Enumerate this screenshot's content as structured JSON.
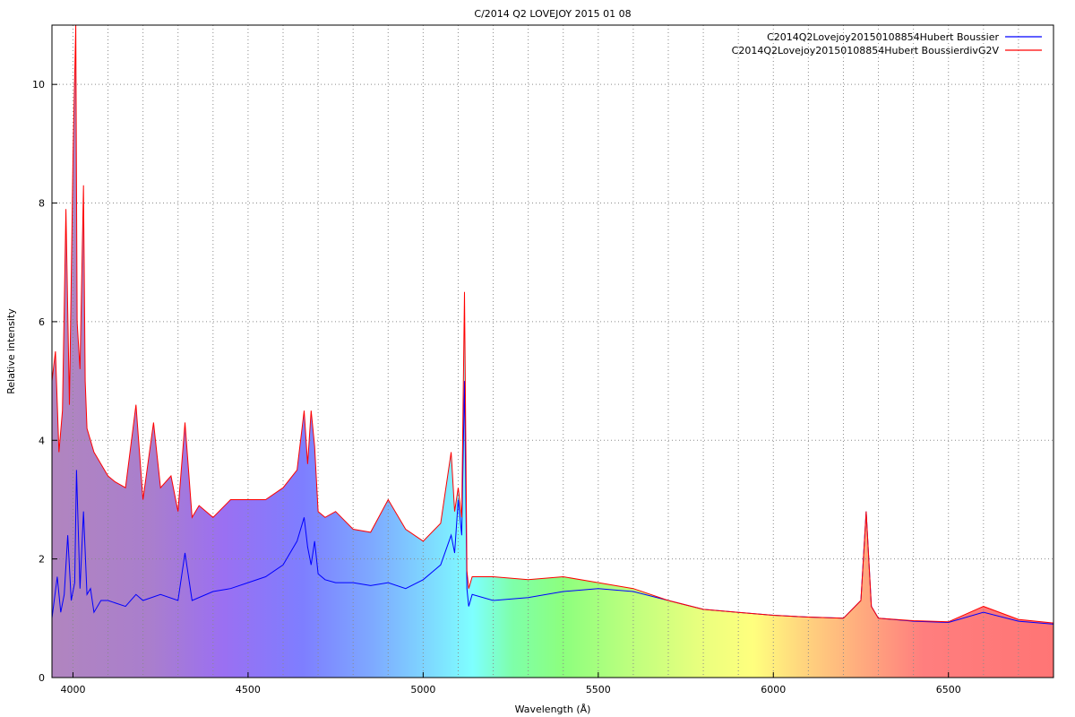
{
  "chart_data": {
    "type": "line",
    "title": "C/2014 Q2 LOVEJOY 2015 01 08",
    "xlabel": "Wavelength (Å)",
    "ylabel": "Relative intensity",
    "xlim": [
      3940,
      6800
    ],
    "ylim": [
      0,
      11
    ],
    "x_ticks": [
      4000,
      4500,
      5000,
      5500,
      6000,
      6500
    ],
    "y_ticks": [
      0,
      2,
      4,
      6,
      8,
      10
    ],
    "grid": true,
    "legend_position": "top-right",
    "background": "visible-spectrum color gradient filling the area under the red curve",
    "series": [
      {
        "name": "C2014Q2Lovejoy20150108854Hubert Boussier",
        "color": "#0000ff",
        "x": [
          3940,
          3955,
          3965,
          3975,
          3985,
          3995,
          4005,
          4010,
          4020,
          4030,
          4040,
          4050,
          4060,
          4080,
          4100,
          4150,
          4180,
          4200,
          4250,
          4300,
          4320,
          4340,
          4400,
          4450,
          4500,
          4550,
          4600,
          4640,
          4660,
          4670,
          4680,
          4690,
          4700,
          4720,
          4750,
          4800,
          4850,
          4900,
          4950,
          5000,
          5050,
          5080,
          5090,
          5100,
          5110,
          5118,
          5125,
          5130,
          5140,
          5200,
          5300,
          5400,
          5500,
          5600,
          5700,
          5800,
          5900,
          6000,
          6100,
          6200,
          6250,
          6265,
          6280,
          6300,
          6400,
          6500,
          6600,
          6700,
          6800
        ],
        "y": [
          1.0,
          1.7,
          1.1,
          1.4,
          2.4,
          1.3,
          1.6,
          3.5,
          1.5,
          2.8,
          1.4,
          1.5,
          1.1,
          1.3,
          1.3,
          1.2,
          1.4,
          1.3,
          1.4,
          1.3,
          2.1,
          1.3,
          1.45,
          1.5,
          1.6,
          1.7,
          1.9,
          2.3,
          2.7,
          2.2,
          1.9,
          2.3,
          1.75,
          1.65,
          1.6,
          1.6,
          1.55,
          1.6,
          1.5,
          1.65,
          1.9,
          2.4,
          2.1,
          3.0,
          2.4,
          5.0,
          1.5,
          1.2,
          1.4,
          1.3,
          1.35,
          1.45,
          1.5,
          1.45,
          1.3,
          1.15,
          1.1,
          1.05,
          1.02,
          1.0,
          1.3,
          2.8,
          1.2,
          1.0,
          0.95,
          0.93,
          1.1,
          0.95,
          0.9
        ]
      },
      {
        "name": "C2014Q2Lovejoy20150108854Hubert BoussierdivG2V",
        "color": "#ff0000",
        "x": [
          3940,
          3950,
          3960,
          3970,
          3980,
          3990,
          4000,
          4008,
          4012,
          4020,
          4030,
          4035,
          4040,
          4050,
          4060,
          4080,
          4100,
          4120,
          4150,
          4180,
          4200,
          4230,
          4250,
          4280,
          4300,
          4320,
          4340,
          4360,
          4400,
          4450,
          4500,
          4550,
          4600,
          4640,
          4660,
          4670,
          4680,
          4690,
          4700,
          4720,
          4750,
          4800,
          4850,
          4900,
          4950,
          5000,
          5050,
          5080,
          5090,
          5100,
          5110,
          5118,
          5125,
          5130,
          5140,
          5200,
          5300,
          5400,
          5500,
          5600,
          5700,
          5800,
          5900,
          6000,
          6100,
          6200,
          6250,
          6265,
          6280,
          6300,
          6400,
          6500,
          6600,
          6700,
          6800
        ],
        "y": [
          5.0,
          5.5,
          3.8,
          4.5,
          7.9,
          4.6,
          8.8,
          11.0,
          6.0,
          5.2,
          8.3,
          5.0,
          4.2,
          4.0,
          3.8,
          3.6,
          3.4,
          3.3,
          3.2,
          4.6,
          3.0,
          4.3,
          3.2,
          3.4,
          2.8,
          4.3,
          2.7,
          2.9,
          2.7,
          3.0,
          3.0,
          3.0,
          3.2,
          3.5,
          4.5,
          3.6,
          4.5,
          3.9,
          2.8,
          2.7,
          2.8,
          2.5,
          2.45,
          3.0,
          2.5,
          2.3,
          2.6,
          3.8,
          2.8,
          3.2,
          2.7,
          6.5,
          1.8,
          1.5,
          1.7,
          1.7,
          1.65,
          1.7,
          1.6,
          1.5,
          1.3,
          1.15,
          1.1,
          1.05,
          1.02,
          1.0,
          1.3,
          2.8,
          1.2,
          1.0,
          0.96,
          0.94,
          1.2,
          0.98,
          0.92
        ]
      }
    ]
  }
}
